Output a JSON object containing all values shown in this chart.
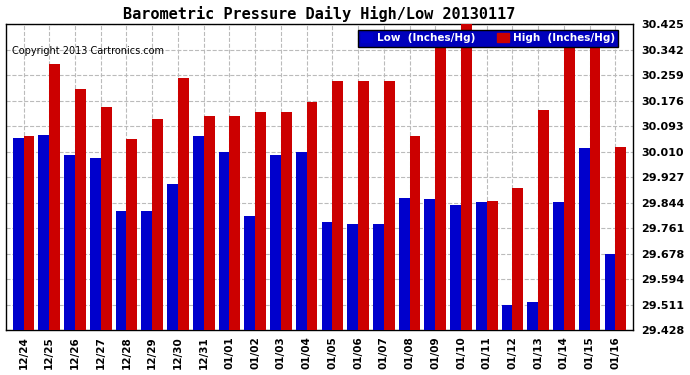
{
  "title": "Barometric Pressure Daily High/Low 20130117",
  "copyright": "Copyright 2013 Cartronics.com",
  "dates": [
    "12/24",
    "12/25",
    "12/26",
    "12/27",
    "12/28",
    "12/29",
    "12/30",
    "12/31",
    "01/01",
    "01/02",
    "01/03",
    "01/04",
    "01/05",
    "01/06",
    "01/07",
    "01/08",
    "01/09",
    "01/10",
    "01/11",
    "01/12",
    "01/13",
    "01/14",
    "01/15",
    "01/16"
  ],
  "low": [
    30.055,
    30.065,
    30.0,
    29.99,
    29.815,
    29.815,
    29.905,
    30.06,
    30.01,
    29.8,
    30.0,
    30.01,
    29.78,
    29.775,
    29.775,
    29.86,
    29.855,
    29.835,
    29.845,
    29.51,
    29.52,
    29.845,
    30.02,
    29.678
  ],
  "high": [
    30.06,
    30.295,
    30.215,
    30.155,
    30.05,
    30.115,
    30.25,
    30.125,
    30.125,
    30.14,
    30.14,
    30.17,
    30.24,
    30.24,
    30.24,
    30.06,
    30.38,
    30.425,
    29.85,
    29.89,
    30.145,
    30.39,
    30.355,
    30.025
  ],
  "ylim_min": 29.428,
  "ylim_max": 30.425,
  "yticks": [
    29.428,
    29.511,
    29.594,
    29.678,
    29.761,
    29.844,
    29.927,
    30.01,
    30.093,
    30.176,
    30.259,
    30.342,
    30.425
  ],
  "low_color": "#0000cc",
  "high_color": "#cc0000",
  "bg_color": "#ffffff",
  "grid_color": "#bbbbbb",
  "legend_low_label": "Low  (Inches/Hg)",
  "legend_high_label": "High  (Inches/Hg)"
}
